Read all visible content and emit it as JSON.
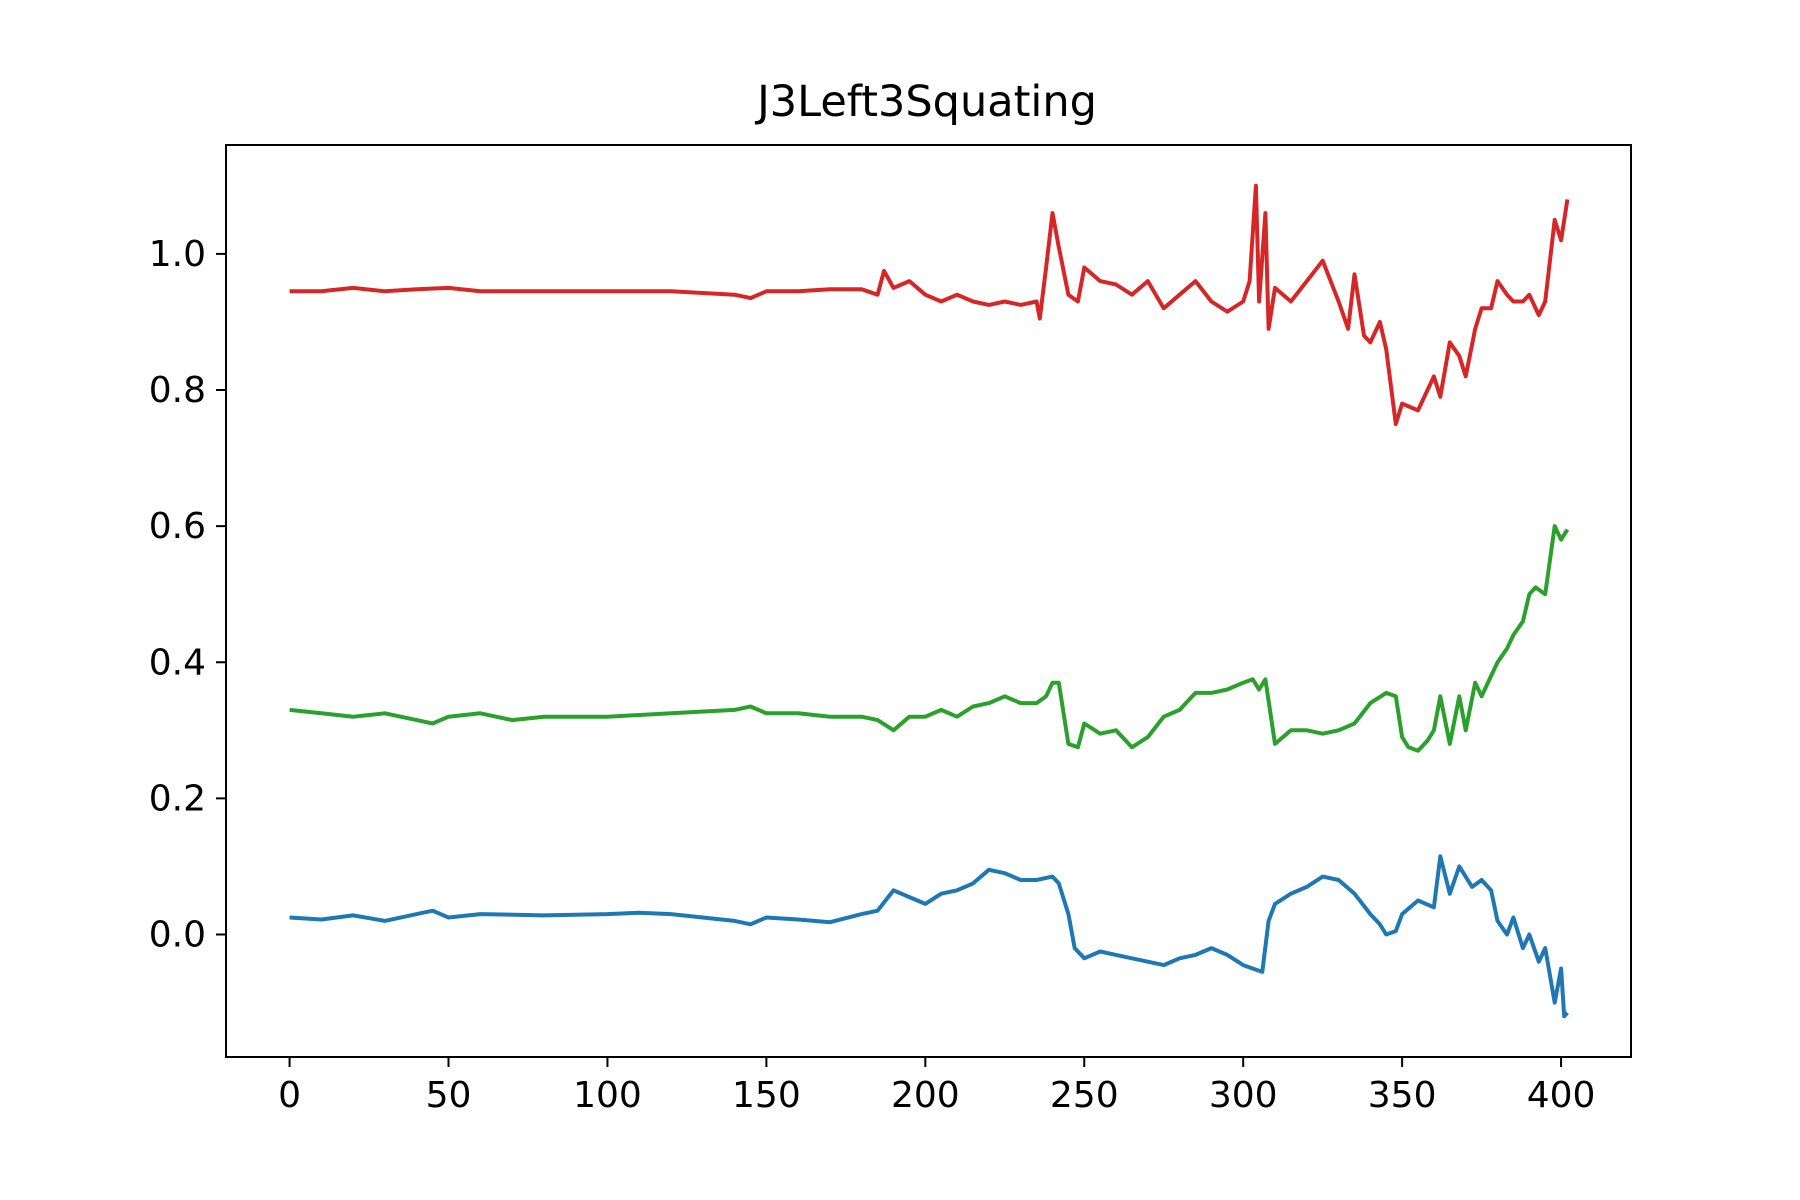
{
  "chart_data": {
    "type": "line",
    "title": "J3Left3Squating",
    "xlabel": "",
    "ylabel": "",
    "xlim": [
      -20,
      422
    ],
    "ylim": [
      -0.18,
      1.16
    ],
    "xticks": [
      0,
      50,
      100,
      150,
      200,
      250,
      300,
      350,
      400
    ],
    "xtick_labels": [
      "0",
      "50",
      "100",
      "150",
      "200",
      "250",
      "300",
      "350",
      "400"
    ],
    "yticks": [
      0.0,
      0.2,
      0.4,
      0.6,
      0.8,
      1.0
    ],
    "ytick_labels": [
      "0.0",
      "0.2",
      "0.4",
      "0.6",
      "0.8",
      "1.0"
    ],
    "grid": false,
    "legend": false,
    "series": [
      {
        "color": "#1f77b4",
        "x": [
          0,
          10,
          20,
          30,
          40,
          45,
          50,
          60,
          80,
          100,
          110,
          120,
          130,
          140,
          145,
          150,
          160,
          170,
          180,
          185,
          190,
          195,
          200,
          205,
          210,
          215,
          220,
          225,
          230,
          235,
          240,
          242,
          245,
          247,
          250,
          255,
          260,
          265,
          270,
          275,
          280,
          285,
          290,
          295,
          300,
          303,
          306,
          308,
          310,
          315,
          320,
          325,
          330,
          335,
          340,
          343,
          345,
          348,
          350,
          355,
          360,
          362,
          365,
          368,
          372,
          375,
          378,
          380,
          383,
          385,
          388,
          390,
          393,
          395,
          398,
          400,
          401,
          402
        ],
        "y": [
          0.025,
          0.022,
          0.028,
          0.02,
          0.03,
          0.035,
          0.025,
          0.03,
          0.028,
          0.03,
          0.032,
          0.03,
          0.025,
          0.02,
          0.015,
          0.025,
          0.022,
          0.018,
          0.03,
          0.035,
          0.065,
          0.055,
          0.045,
          0.06,
          0.065,
          0.075,
          0.095,
          0.09,
          0.08,
          0.08,
          0.085,
          0.075,
          0.03,
          -0.02,
          -0.035,
          -0.025,
          -0.03,
          -0.035,
          -0.04,
          -0.045,
          -0.035,
          -0.03,
          -0.02,
          -0.03,
          -0.045,
          -0.05,
          -0.055,
          0.02,
          0.045,
          0.06,
          0.07,
          0.085,
          0.08,
          0.06,
          0.03,
          0.015,
          0.0,
          0.005,
          0.03,
          0.05,
          0.04,
          0.115,
          0.06,
          0.1,
          0.07,
          0.08,
          0.065,
          0.02,
          0.0,
          0.025,
          -0.02,
          0.0,
          -0.04,
          -0.02,
          -0.1,
          -0.05,
          -0.12,
          -0.115
        ]
      },
      {
        "color": "#2ca02c",
        "x": [
          0,
          10,
          20,
          30,
          40,
          45,
          50,
          60,
          70,
          80,
          100,
          120,
          140,
          145,
          150,
          160,
          170,
          180,
          185,
          190,
          195,
          200,
          205,
          210,
          215,
          220,
          225,
          230,
          235,
          238,
          240,
          242,
          245,
          248,
          250,
          255,
          260,
          265,
          270,
          275,
          280,
          285,
          290,
          295,
          300,
          303,
          305,
          307,
          310,
          315,
          320,
          325,
          330,
          335,
          340,
          345,
          348,
          350,
          352,
          355,
          358,
          360,
          362,
          365,
          368,
          370,
          373,
          375,
          378,
          380,
          383,
          385,
          388,
          390,
          392,
          395,
          398,
          400,
          402
        ],
        "y": [
          0.33,
          0.325,
          0.32,
          0.325,
          0.315,
          0.31,
          0.32,
          0.325,
          0.315,
          0.32,
          0.32,
          0.325,
          0.33,
          0.335,
          0.325,
          0.325,
          0.32,
          0.32,
          0.315,
          0.3,
          0.32,
          0.32,
          0.33,
          0.32,
          0.335,
          0.34,
          0.35,
          0.34,
          0.34,
          0.35,
          0.37,
          0.37,
          0.28,
          0.275,
          0.31,
          0.295,
          0.3,
          0.275,
          0.29,
          0.32,
          0.33,
          0.355,
          0.355,
          0.36,
          0.37,
          0.375,
          0.36,
          0.375,
          0.28,
          0.3,
          0.3,
          0.295,
          0.3,
          0.31,
          0.34,
          0.355,
          0.35,
          0.29,
          0.275,
          0.27,
          0.285,
          0.3,
          0.35,
          0.28,
          0.35,
          0.3,
          0.37,
          0.35,
          0.38,
          0.4,
          0.42,
          0.44,
          0.46,
          0.5,
          0.51,
          0.5,
          0.6,
          0.58,
          0.595
        ]
      },
      {
        "color": "#d62728",
        "x": [
          0,
          10,
          20,
          30,
          40,
          50,
          60,
          80,
          100,
          120,
          140,
          145,
          150,
          160,
          170,
          180,
          185,
          187,
          190,
          195,
          200,
          205,
          210,
          215,
          220,
          225,
          230,
          235,
          236,
          238,
          240,
          242,
          245,
          248,
          250,
          255,
          260,
          265,
          270,
          275,
          280,
          285,
          290,
          295,
          300,
          302,
          304,
          305,
          307,
          308,
          310,
          315,
          320,
          325,
          330,
          333,
          335,
          338,
          340,
          343,
          345,
          348,
          350,
          355,
          360,
          362,
          365,
          368,
          370,
          373,
          375,
          378,
          380,
          383,
          385,
          388,
          390,
          393,
          395,
          398,
          400,
          402
        ],
        "y": [
          0.945,
          0.945,
          0.95,
          0.945,
          0.948,
          0.95,
          0.945,
          0.945,
          0.945,
          0.945,
          0.94,
          0.935,
          0.945,
          0.945,
          0.948,
          0.948,
          0.94,
          0.975,
          0.95,
          0.96,
          0.94,
          0.93,
          0.94,
          0.93,
          0.925,
          0.93,
          0.925,
          0.93,
          0.905,
          0.98,
          1.06,
          1.01,
          0.94,
          0.93,
          0.98,
          0.96,
          0.955,
          0.94,
          0.96,
          0.92,
          0.94,
          0.96,
          0.93,
          0.915,
          0.93,
          0.96,
          1.1,
          0.93,
          1.06,
          0.89,
          0.95,
          0.93,
          0.96,
          0.99,
          0.93,
          0.89,
          0.97,
          0.88,
          0.87,
          0.9,
          0.86,
          0.75,
          0.78,
          0.77,
          0.82,
          0.79,
          0.87,
          0.85,
          0.82,
          0.89,
          0.92,
          0.92,
          0.96,
          0.94,
          0.93,
          0.93,
          0.94,
          0.91,
          0.93,
          1.05,
          1.02,
          1.08
        ]
      }
    ]
  }
}
